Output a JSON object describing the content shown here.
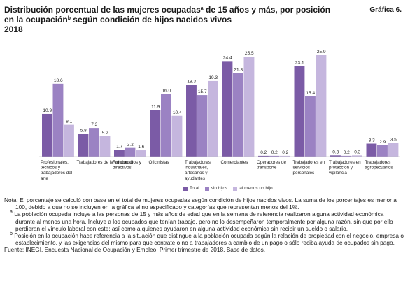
{
  "title": {
    "part1": "Distribución porcentual de las mujeres ocupadas",
    "sup_a": "a",
    "part2": " de 15 años y más, por posición",
    "part3": "en la ocupación",
    "sup_b": "b",
    "part4": " según condición de hijos nacidos vivos",
    "year": "2018"
  },
  "graph_label": "Gráfica 6.",
  "colors": {
    "total": "#7B5BA6",
    "sin_hijos": "#9B82C3",
    "al_menos_un_hijo": "#C5B6DE"
  },
  "chart_data": {
    "type": "bar",
    "categories": [
      [
        "Profesionales,",
        "técnicos y",
        "trabajadores del",
        "arte"
      ],
      [
        "Trabajadores de la educación"
      ],
      [
        "Funcionarios y",
        "directivos"
      ],
      [
        "Oficinistas"
      ],
      [
        "Trabajadores",
        "industriales,",
        "artesanos y",
        "ayudantes"
      ],
      [
        "Comerciantes"
      ],
      [
        "Operadores de",
        "transporte"
      ],
      [
        "Trabajadores en",
        "servicios",
        "personales"
      ],
      [
        "Trabajadores en",
        "protección y",
        "vigilancia"
      ],
      [
        "Trabajadores",
        "agropecuarios"
      ]
    ],
    "series": [
      {
        "name": "Total",
        "values": [
          10.9,
          5.8,
          1.7,
          11.9,
          18.3,
          24.4,
          0.2,
          23.1,
          0.3,
          3.3
        ]
      },
      {
        "name": "sin hijos",
        "values": [
          18.6,
          7.3,
          2.2,
          16.0,
          15.7,
          21.3,
          0.2,
          15.4,
          0.2,
          2.9
        ]
      },
      {
        "name": "al menos un hijo",
        "values": [
          8.1,
          5.2,
          1.6,
          10.4,
          19.3,
          25.5,
          0.2,
          25.9,
          0.3,
          3.5
        ]
      }
    ],
    "legend_position": "bottom-center"
  },
  "notes": {
    "main": "Nota: El porcentaje se calculó con base en el total de mujeres ocupadas según condición de hijos nacidos vivos. La suma de los porcentajes es menor a 100, debido a que no se incluyen en la gráfica el no especificado y categorías que representan menos del 1%.",
    "a_mark": "a",
    "a": "La población ocupada incluye a las personas de 15 y más años de edad que en la semana de referencia realizaron alguna actividad económica durante al menos una hora. Incluye a los ocupados que tenían trabajo, pero no lo desempeñaron temporalmente por alguna razón, sin que por ello perdieran el vínculo laboral con este; así como a quienes ayudaron en alguna actividad económica sin recibir un sueldo o salario.",
    "b_mark": "b",
    "b": "Posición en la ocupación hace referencia a la situación que distingue a la población ocupada según la relación de propiedad con el negocio, empresa o establecimiento, y las exigencias del mismo para que contrate o no a trabajadores a cambio de un pago o sólo reciba ayuda de ocupados sin pago.",
    "source": "Fuente: INEGI. Encuesta Nacional de Ocupación y Empleo. Primer trimestre de 2018. Base de datos."
  }
}
